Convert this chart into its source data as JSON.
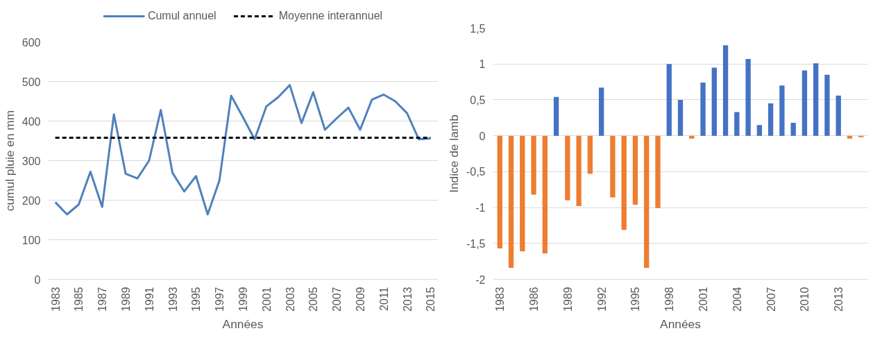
{
  "chart_data": [
    {
      "type": "line",
      "xlabel": "Années",
      "ylabel": "cumul pluie en mm",
      "categories": [
        "1983",
        null,
        "1985",
        null,
        "1987",
        null,
        "1989",
        null,
        "1991",
        null,
        "1993",
        null,
        "1995",
        null,
        "1997",
        null,
        "1999",
        null,
        "2001",
        null,
        "2003",
        null,
        "2005",
        null,
        "2007",
        null,
        "2009",
        null,
        "2011",
        null,
        "2013",
        null,
        "2015"
      ],
      "series": [
        {
          "name": "Cumul annuel",
          "color": "#4f81bd",
          "line_style": "solid",
          "values": [
            195,
            164,
            189,
            272,
            183,
            417,
            267,
            255,
            300,
            428,
            269,
            222,
            261,
            164,
            250,
            464,
            410,
            354,
            437,
            460,
            491,
            395,
            473,
            378,
            407,
            434,
            378,
            454,
            467,
            450,
            420,
            354,
            356
          ]
        },
        {
          "name": "Moyenne interannuel",
          "color": "#000000",
          "line_style": "dashed",
          "values": [
            358,
            358,
            358,
            358,
            358,
            358,
            358,
            358,
            358,
            358,
            358,
            358,
            358,
            358,
            358,
            358,
            358,
            358,
            358,
            358,
            358,
            358,
            358,
            358,
            358,
            358,
            358,
            358,
            358,
            358,
            358,
            358,
            358
          ]
        }
      ],
      "ylim": [
        0,
        600
      ],
      "yticks": [
        0,
        100,
        200,
        300,
        400,
        500,
        600
      ],
      "grid": "y",
      "legend": "top",
      "marker": "none"
    },
    {
      "type": "bar",
      "xlabel": "Années",
      "ylabel": "Indice de lamb",
      "categories": [
        "1983",
        null,
        null,
        "1986",
        null,
        null,
        "1989",
        null,
        null,
        "1992",
        null,
        null,
        "1995",
        null,
        null,
        "1998",
        null,
        null,
        "2001",
        null,
        null,
        "2004",
        null,
        null,
        "2007",
        null,
        null,
        "2010",
        null,
        null,
        "2013",
        null,
        null
      ],
      "values": [
        -1.57,
        -1.84,
        -1.61,
        -0.82,
        -1.64,
        0.54,
        -0.9,
        -0.98,
        -0.53,
        0.67,
        -0.86,
        -1.31,
        -0.96,
        -1.84,
        -1.01,
        1.0,
        0.5,
        -0.04,
        0.74,
        0.95,
        1.26,
        0.33,
        1.07,
        0.15,
        0.45,
        0.7,
        0.18,
        0.91,
        1.01,
        0.85,
        0.56,
        -0.04,
        -0.02
      ],
      "colors": [
        "#ed7d31",
        "#ed7d31",
        "#ed7d31",
        "#ed7d31",
        "#ed7d31",
        "#4472c4",
        "#ed7d31",
        "#ed7d31",
        "#ed7d31",
        "#4472c4",
        "#ed7d31",
        "#ed7d31",
        "#ed7d31",
        "#ed7d31",
        "#ed7d31",
        "#4472c4",
        "#4472c4",
        "#ed7d31",
        "#4472c4",
        "#4472c4",
        "#4472c4",
        "#4472c4",
        "#4472c4",
        "#4472c4",
        "#4472c4",
        "#4472c4",
        "#4472c4",
        "#4472c4",
        "#4472c4",
        "#4472c4",
        "#4472c4",
        "#ed7d31",
        "#ed7d31"
      ],
      "ylim": [
        -2,
        1.5
      ],
      "yticks": [
        {
          "value": -2,
          "label": "-2"
        },
        {
          "value": -1.5,
          "label": "-1,5"
        },
        {
          "value": -1,
          "label": "-1"
        },
        {
          "value": -0.5,
          "label": "-0,5"
        },
        {
          "value": 0,
          "label": "0"
        },
        {
          "value": 0.5,
          "label": "0,5"
        },
        {
          "value": 1,
          "label": "1"
        },
        {
          "value": 1.5,
          "label": "1,5"
        }
      ],
      "grid": "y",
      "legend": false
    }
  ]
}
